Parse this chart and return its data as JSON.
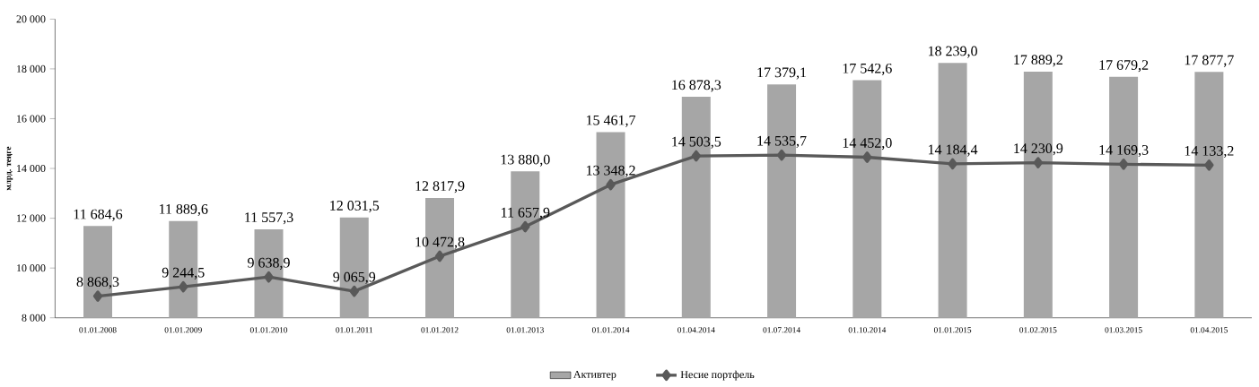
{
  "chart_data": {
    "type": "bar",
    "ylabel": "млрд. теңге",
    "categories": [
      "01.01.2008",
      "01.01.2009",
      "01.01.2010",
      "01.01.2011",
      "01.01.2012",
      "01.01.2013",
      "01.01.2014",
      "01.04.2014",
      "01.07.2014",
      "01.10.2014",
      "01.01.2015",
      "01.02.2015",
      "01.03.2015",
      "01.04.2015"
    ],
    "series": [
      {
        "name": "Активтер",
        "color": "#a6a6a6",
        "values": [
          11684.6,
          11889.6,
          11557.3,
          12031.5,
          12817.9,
          13880.0,
          15461.7,
          16878.3,
          17379.1,
          17542.6,
          18239.0,
          17889.2,
          17679.2,
          17877.7
        ],
        "value_labels": [
          "11 684,6",
          "11 889,6",
          "11 557,3",
          "12 031,5",
          "12 817,9",
          "13 880,0",
          "15 461,7",
          "16 878,3",
          "17 379,1",
          "17 542,6",
          "18 239,0",
          "17 889,2",
          "17 679,2",
          "17 877,7"
        ]
      },
      {
        "name": "Несие портфель",
        "type": "line",
        "color": "#595959",
        "marker": "diamond",
        "line_style": "solid",
        "values": [
          8868.3,
          9244.5,
          9638.9,
          9065.9,
          10472.8,
          11657.9,
          13348.2,
          14503.5,
          14535.7,
          14452.0,
          14184.4,
          14230.9,
          14169.3,
          14133.2
        ],
        "value_labels": [
          "8 868,3",
          "9 244,5",
          "9 638,9",
          "9 065,9",
          "10 472,8",
          "11 657,9",
          "13 348,2",
          "14 503,5",
          "14 535,7",
          "14 452,0",
          "14 184,4",
          "14 230,9",
          "14 169,3",
          "14 133,2"
        ]
      }
    ],
    "ylim": [
      8000,
      20000
    ],
    "yticks": [
      {
        "value": 8000,
        "label": "8 000"
      },
      {
        "value": 10000,
        "label": "10 000"
      },
      {
        "value": 12000,
        "label": "12 000"
      },
      {
        "value": 14000,
        "label": "14 000"
      },
      {
        "value": 16000,
        "label": "16 000"
      },
      {
        "value": 18000,
        "label": "18 000"
      },
      {
        "value": 20000,
        "label": "20 000"
      }
    ],
    "grid": false,
    "legend": "bottom"
  }
}
